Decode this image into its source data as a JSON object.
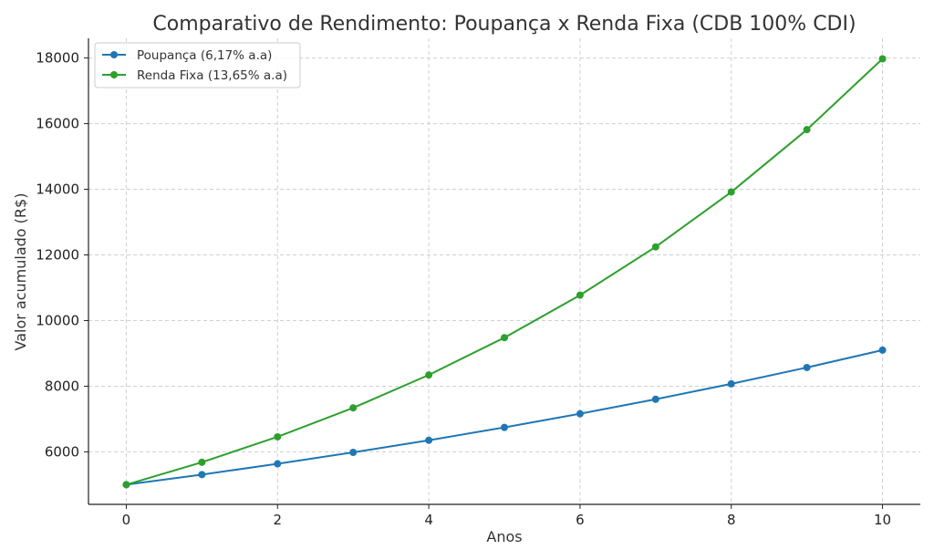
{
  "chart_data": {
    "type": "line",
    "title": "Comparativo de Rendimento: Poupança x Renda Fixa (CDB 100% CDI)",
    "xlabel": "Anos",
    "ylabel": "Valor acumulado (R$)",
    "x": [
      0,
      1,
      2,
      3,
      4,
      5,
      6,
      7,
      8,
      9,
      10
    ],
    "xlim": [
      -0.5,
      10.5
    ],
    "ylim": [
      4400,
      18600
    ],
    "x_ticks": [
      0,
      2,
      4,
      6,
      8,
      10
    ],
    "y_ticks": [
      6000,
      8000,
      10000,
      12000,
      14000,
      16000,
      18000
    ],
    "grid": true,
    "legend_position": "top-left",
    "series": [
      {
        "name": "Poupança (6,17% a.a)",
        "color": "#1f77b4",
        "values": [
          5000,
          5308,
          5636,
          5984,
          6353,
          6745,
          7161,
          7603,
          8072,
          8570,
          9099
        ]
      },
      {
        "name": "Renda Fixa (13,65% a.a)",
        "color": "#2ca02c",
        "values": [
          5000,
          5683,
          6458,
          7340,
          8342,
          9480,
          10774,
          12245,
          13916,
          15816,
          17975
        ]
      }
    ]
  }
}
